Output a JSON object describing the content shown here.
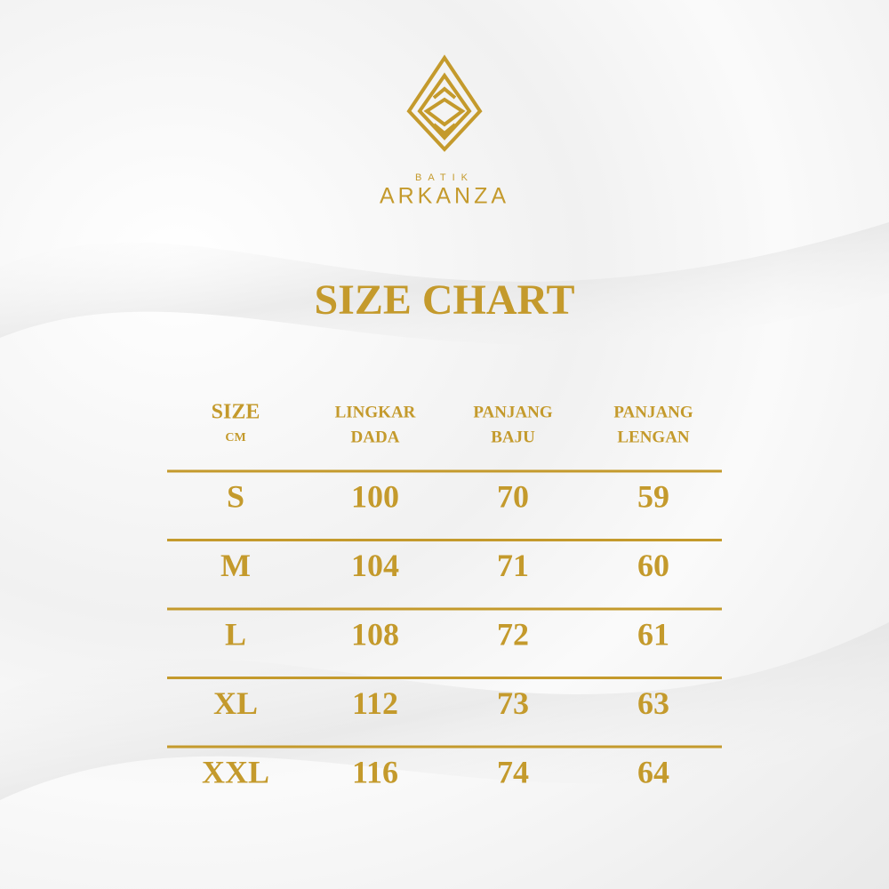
{
  "brand": {
    "small": "BATIK",
    "name": "ARKANZA"
  },
  "title": "SIZE CHART",
  "table": {
    "headers": [
      [
        "SIZE",
        "CM"
      ],
      [
        "LINGKAR",
        "DADA"
      ],
      [
        "PANJANG",
        "BAJU"
      ],
      [
        "PANJANG",
        "LENGAN"
      ]
    ],
    "rows": [
      [
        "S",
        100,
        70,
        59
      ],
      [
        "M",
        104,
        71,
        60
      ],
      [
        "L",
        108,
        72,
        61
      ],
      [
        "XL",
        112,
        73,
        63
      ],
      [
        "XXL",
        116,
        74,
        64
      ]
    ]
  }
}
